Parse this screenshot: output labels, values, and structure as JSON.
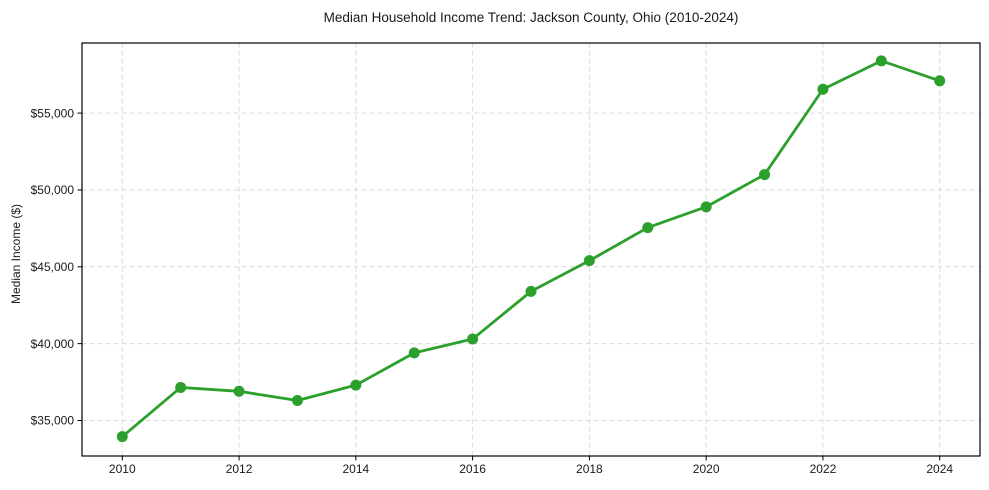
{
  "chart_data": {
    "type": "line",
    "title": "Median Household Income Trend: Jackson County, Ohio (2010-2024)",
    "xlabel": "",
    "ylabel": "Median Income ($)",
    "x": [
      2010,
      2011,
      2012,
      2013,
      2014,
      2015,
      2016,
      2017,
      2018,
      2019,
      2020,
      2021,
      2022,
      2023,
      2024
    ],
    "series": [
      {
        "name": "Median Household Income",
        "color": "#2ca02c",
        "marker": "circle",
        "values": [
          33950,
          37150,
          36900,
          36300,
          37300,
          39400,
          40300,
          43400,
          45400,
          47550,
          48900,
          51000,
          56550,
          58400,
          57100
        ]
      }
    ],
    "x_ticks": {
      "values": [
        2010,
        2012,
        2014,
        2016,
        2018,
        2020,
        2022,
        2024
      ],
      "labels": [
        "2010",
        "2012",
        "2014",
        "2016",
        "2018",
        "2020",
        "2022",
        "2024"
      ]
    },
    "y_ticks": {
      "values": [
        35000,
        40000,
        45000,
        50000,
        55000
      ],
      "labels": [
        "$35,000",
        "$40,000",
        "$45,000",
        "$50,000",
        "$55,000"
      ]
    },
    "xlim": [
      2009.31,
      2024.69
    ],
    "ylim": [
      32690,
      59560
    ],
    "grid": true,
    "grid_color": "#d9d9d9",
    "grid_dash": "dashed",
    "spine_color": "#000000",
    "legend": false
  }
}
